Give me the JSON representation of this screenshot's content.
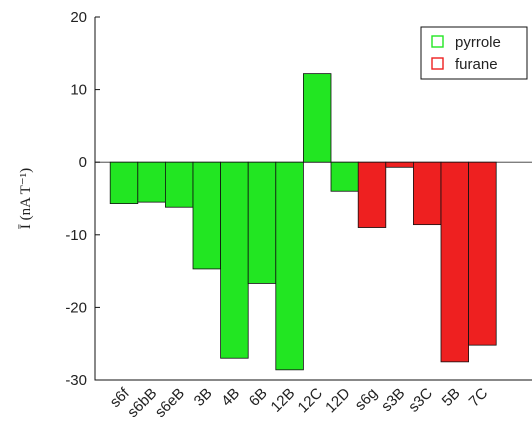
{
  "chart_data": {
    "type": "bar",
    "ylabel": "Ī (nA T⁻¹)",
    "ylim": [
      -30,
      20
    ],
    "yticks": [
      20,
      10,
      0,
      -10,
      -20,
      -30
    ],
    "grid": false,
    "legend_position": "top-right",
    "series": [
      {
        "name": "pyrrole",
        "color": "#22e622",
        "categories": [
          "s6f",
          "s6bB",
          "s6eB",
          "3B",
          "4B",
          "6B",
          "12B",
          "12C",
          "12D"
        ],
        "values": [
          -5.7,
          -5.5,
          -6.2,
          -14.7,
          -27,
          -16.7,
          -28.6,
          12.2,
          -4
        ]
      },
      {
        "name": "furane",
        "color": "#ee2020",
        "categories": [
          "s6g",
          "s3B",
          "s3C",
          "5B",
          "7C"
        ],
        "values": [
          -9,
          -0.7,
          -8.6,
          -27.5,
          -25.2
        ]
      }
    ]
  }
}
